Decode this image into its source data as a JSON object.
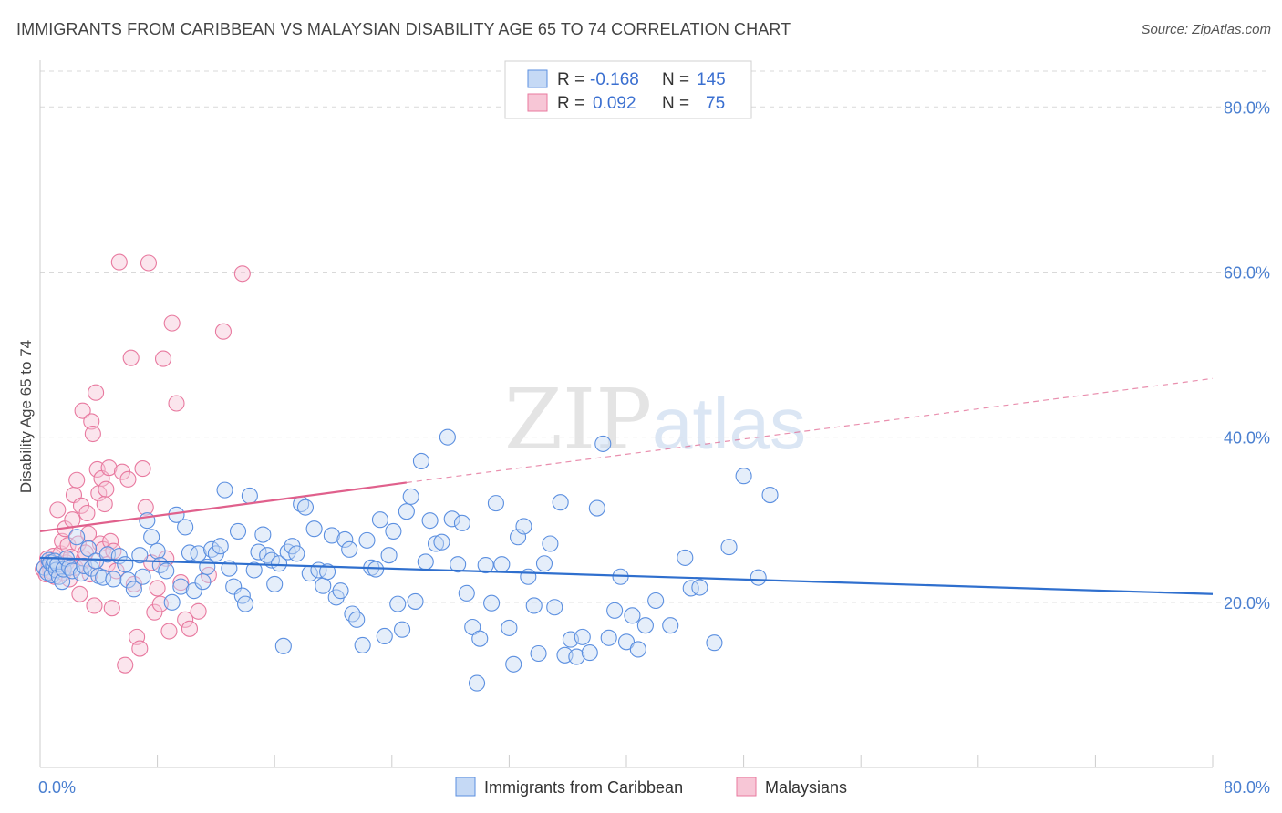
{
  "title": "IMMIGRANTS FROM CARIBBEAN VS MALAYSIAN DISABILITY AGE 65 TO 74 CORRELATION CHART",
  "source": "Source: ZipAtlas.com",
  "watermark": {
    "zip": "ZIP",
    "atlas": "atlas"
  },
  "legend": {
    "r_label": "R =",
    "n_label": "N =",
    "rows": [
      {
        "r": "-0.168",
        "n": "145"
      },
      {
        "r": "0.092",
        "n": "75"
      }
    ]
  },
  "chart_data": {
    "type": "scatter",
    "xlabel": "",
    "ylabel": "Disability Age 65 to 74",
    "xlim": [
      0,
      80
    ],
    "ylim": [
      0,
      85
    ],
    "x_tick_labels": [
      "0.0%",
      "80.0%"
    ],
    "y_ticks": [
      20,
      40,
      60,
      80
    ],
    "y_tick_labels": [
      "20.0%",
      "40.0%",
      "60.0%",
      "80.0%"
    ],
    "grid": "horizontal-dashed",
    "legend_position": "top-center",
    "colors": {
      "blue": "#5b8fe0",
      "blue_fill": "#c5d9f5",
      "pink": "#e8799f",
      "pink_fill": "#f7c6d6",
      "blue_line": "#2f6fce",
      "pink_line": "#e0608c"
    },
    "series": [
      {
        "name": "Immigrants from Caribbean",
        "color": "#5b8fe0",
        "trend": {
          "x": [
            0,
            80
          ],
          "y": [
            25.4,
            21.0
          ],
          "style": "solid"
        },
        "points": [
          [
            0.3,
            24.2
          ],
          [
            0.5,
            23.6
          ],
          [
            0.6,
            25.1
          ],
          [
            0.7,
            24.8
          ],
          [
            0.8,
            23.3
          ],
          [
            0.9,
            24.5
          ],
          [
            1.0,
            25.0
          ],
          [
            1.1,
            23.9
          ],
          [
            1.2,
            24.6
          ],
          [
            1.3,
            23.1
          ],
          [
            1.5,
            22.5
          ],
          [
            1.6,
            24.0
          ],
          [
            1.8,
            25.3
          ],
          [
            2.0,
            24.2
          ],
          [
            2.2,
            23.8
          ],
          [
            2.5,
            27.9
          ],
          [
            2.8,
            23.5
          ],
          [
            3.0,
            24.4
          ],
          [
            3.3,
            26.5
          ],
          [
            3.5,
            24.1
          ],
          [
            3.8,
            25.0
          ],
          [
            4.0,
            23.2
          ],
          [
            4.3,
            23.0
          ],
          [
            4.6,
            25.8
          ],
          [
            5.0,
            22.8
          ],
          [
            5.4,
            25.6
          ],
          [
            5.8,
            24.6
          ],
          [
            6.0,
            22.7
          ],
          [
            6.4,
            21.6
          ],
          [
            6.8,
            25.7
          ],
          [
            7.0,
            23.1
          ],
          [
            7.3,
            29.9
          ],
          [
            7.6,
            27.9
          ],
          [
            8.0,
            26.2
          ],
          [
            8.2,
            24.5
          ],
          [
            8.6,
            23.8
          ],
          [
            9.0,
            20.0
          ],
          [
            9.3,
            30.6
          ],
          [
            9.6,
            21.9
          ],
          [
            9.9,
            29.1
          ],
          [
            10.2,
            26.0
          ],
          [
            10.5,
            21.4
          ],
          [
            10.8,
            25.9
          ],
          [
            11.1,
            22.5
          ],
          [
            11.4,
            24.3
          ],
          [
            11.7,
            26.4
          ],
          [
            12.0,
            25.9
          ],
          [
            12.3,
            26.8
          ],
          [
            12.6,
            33.6
          ],
          [
            12.9,
            24.1
          ],
          [
            13.2,
            21.9
          ],
          [
            13.5,
            28.6
          ],
          [
            13.8,
            20.8
          ],
          [
            14.0,
            19.8
          ],
          [
            14.3,
            32.9
          ],
          [
            14.6,
            23.9
          ],
          [
            14.9,
            26.1
          ],
          [
            15.2,
            28.2
          ],
          [
            15.5,
            25.7
          ],
          [
            15.8,
            25.1
          ],
          [
            16.0,
            22.2
          ],
          [
            16.3,
            24.7
          ],
          [
            16.6,
            14.7
          ],
          [
            16.9,
            26.1
          ],
          [
            17.2,
            26.8
          ],
          [
            17.5,
            25.9
          ],
          [
            17.8,
            31.9
          ],
          [
            18.1,
            31.5
          ],
          [
            18.4,
            23.5
          ],
          [
            18.7,
            28.9
          ],
          [
            19.0,
            23.9
          ],
          [
            19.3,
            22.0
          ],
          [
            19.6,
            23.7
          ],
          [
            19.9,
            28.1
          ],
          [
            20.2,
            20.6
          ],
          [
            20.5,
            21.4
          ],
          [
            20.8,
            27.6
          ],
          [
            21.1,
            26.4
          ],
          [
            21.3,
            18.6
          ],
          [
            21.6,
            17.9
          ],
          [
            22.0,
            14.8
          ],
          [
            22.3,
            27.5
          ],
          [
            22.6,
            24.2
          ],
          [
            22.9,
            24.0
          ],
          [
            23.2,
            30.0
          ],
          [
            23.5,
            15.9
          ],
          [
            23.8,
            25.7
          ],
          [
            24.1,
            28.6
          ],
          [
            24.4,
            19.8
          ],
          [
            24.7,
            16.7
          ],
          [
            25.0,
            31.0
          ],
          [
            25.3,
            32.8
          ],
          [
            25.6,
            20.1
          ],
          [
            26.0,
            37.1
          ],
          [
            26.3,
            24.9
          ],
          [
            26.6,
            29.9
          ],
          [
            27.0,
            27.1
          ],
          [
            27.4,
            27.3
          ],
          [
            27.8,
            40.0
          ],
          [
            28.1,
            30.1
          ],
          [
            28.5,
            24.6
          ],
          [
            28.8,
            29.6
          ],
          [
            29.1,
            21.1
          ],
          [
            29.5,
            17.0
          ],
          [
            29.8,
            10.2
          ],
          [
            30.0,
            15.6
          ],
          [
            30.4,
            24.5
          ],
          [
            30.8,
            19.9
          ],
          [
            31.1,
            32.0
          ],
          [
            31.5,
            24.6
          ],
          [
            32.0,
            16.9
          ],
          [
            32.3,
            12.5
          ],
          [
            32.6,
            27.9
          ],
          [
            33.0,
            29.2
          ],
          [
            33.3,
            23.1
          ],
          [
            33.7,
            19.6
          ],
          [
            34.0,
            13.8
          ],
          [
            34.4,
            24.7
          ],
          [
            34.8,
            27.1
          ],
          [
            35.1,
            19.4
          ],
          [
            35.5,
            32.1
          ],
          [
            35.8,
            13.6
          ],
          [
            36.2,
            15.5
          ],
          [
            36.6,
            13.4
          ],
          [
            37.0,
            15.8
          ],
          [
            37.5,
            13.9
          ],
          [
            38.0,
            31.4
          ],
          [
            38.4,
            39.2
          ],
          [
            38.8,
            15.7
          ],
          [
            39.2,
            19.0
          ],
          [
            39.6,
            23.1
          ],
          [
            40.0,
            15.2
          ],
          [
            40.4,
            18.4
          ],
          [
            40.8,
            14.3
          ],
          [
            41.3,
            17.2
          ],
          [
            42.0,
            20.2
          ],
          [
            43.0,
            17.2
          ],
          [
            44.0,
            25.4
          ],
          [
            44.4,
            21.7
          ],
          [
            45.0,
            21.8
          ],
          [
            46.0,
            15.1
          ],
          [
            47.0,
            26.7
          ],
          [
            48.0,
            35.3
          ],
          [
            49.0,
            23.0
          ],
          [
            49.8,
            33.0
          ]
        ]
      },
      {
        "name": "Malaysians",
        "color": "#e8799f",
        "trend": {
          "x": [
            0,
            25
          ],
          "y": [
            28.6,
            34.5
          ],
          "style": "solid",
          "extension": {
            "x": [
              25,
              80
            ],
            "y": [
              34.5,
              47.1
            ],
            "style": "dashed"
          }
        },
        "points": [
          [
            0.2,
            24.0
          ],
          [
            0.4,
            23.4
          ],
          [
            0.5,
            25.3
          ],
          [
            0.6,
            24.6
          ],
          [
            0.7,
            23.8
          ],
          [
            0.8,
            24.9
          ],
          [
            0.9,
            25.6
          ],
          [
            1.0,
            23.1
          ],
          [
            1.1,
            24.4
          ],
          [
            1.2,
            31.2
          ],
          [
            1.4,
            25.9
          ],
          [
            1.5,
            27.4
          ],
          [
            1.6,
            23.6
          ],
          [
            1.7,
            28.9
          ],
          [
            1.8,
            24.8
          ],
          [
            1.9,
            26.9
          ],
          [
            2.0,
            22.8
          ],
          [
            2.1,
            25.5
          ],
          [
            2.2,
            30.0
          ],
          [
            2.3,
            33.0
          ],
          [
            2.4,
            24.2
          ],
          [
            2.5,
            34.8
          ],
          [
            2.6,
            27.1
          ],
          [
            2.7,
            21.0
          ],
          [
            2.8,
            31.7
          ],
          [
            2.9,
            43.2
          ],
          [
            3.0,
            25.3
          ],
          [
            3.1,
            26.0
          ],
          [
            3.2,
            30.8
          ],
          [
            3.3,
            28.3
          ],
          [
            3.4,
            23.4
          ],
          [
            3.5,
            41.9
          ],
          [
            3.6,
            40.4
          ],
          [
            3.7,
            19.6
          ],
          [
            3.8,
            45.4
          ],
          [
            3.9,
            36.1
          ],
          [
            4.0,
            33.2
          ],
          [
            4.1,
            27.1
          ],
          [
            4.2,
            35.0
          ],
          [
            4.3,
            26.4
          ],
          [
            4.4,
            31.9
          ],
          [
            4.5,
            33.7
          ],
          [
            4.6,
            24.6
          ],
          [
            4.7,
            36.3
          ],
          [
            4.8,
            27.4
          ],
          [
            4.9,
            19.3
          ],
          [
            5.0,
            26.2
          ],
          [
            5.2,
            23.8
          ],
          [
            5.4,
            61.2
          ],
          [
            5.6,
            35.8
          ],
          [
            5.8,
            12.4
          ],
          [
            6.0,
            34.9
          ],
          [
            6.2,
            49.6
          ],
          [
            6.4,
            22.2
          ],
          [
            6.6,
            15.8
          ],
          [
            6.8,
            14.4
          ],
          [
            7.0,
            36.2
          ],
          [
            7.2,
            31.5
          ],
          [
            7.4,
            61.1
          ],
          [
            7.6,
            24.8
          ],
          [
            7.8,
            18.8
          ],
          [
            8.0,
            21.7
          ],
          [
            8.2,
            19.8
          ],
          [
            8.4,
            49.5
          ],
          [
            8.6,
            25.3
          ],
          [
            8.8,
            16.5
          ],
          [
            9.0,
            53.8
          ],
          [
            9.3,
            44.1
          ],
          [
            9.6,
            22.4
          ],
          [
            9.9,
            17.9
          ],
          [
            10.2,
            16.8
          ],
          [
            10.8,
            18.9
          ],
          [
            11.5,
            23.3
          ],
          [
            12.5,
            52.8
          ],
          [
            13.8,
            59.8
          ]
        ]
      }
    ]
  },
  "bottom_legend": [
    "Immigrants from Caribbean",
    "Malaysians"
  ]
}
